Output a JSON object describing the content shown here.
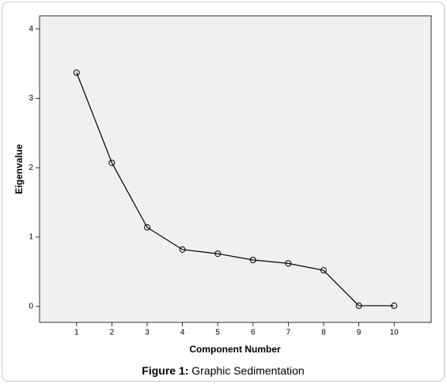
{
  "chart_data": {
    "type": "line",
    "x_label": "Component Number",
    "y_label": "Eigenvalue",
    "x": [
      1,
      2,
      3,
      4,
      5,
      6,
      7,
      8,
      9,
      10
    ],
    "series": [
      {
        "name": "Eigenvalue",
        "color": "#000000",
        "values": [
          3.37,
          2.07,
          1.14,
          0.82,
          0.76,
          0.67,
          0.62,
          0.52,
          0.01,
          0.01
        ]
      }
    ],
    "xlim": [
      -0.05,
      11.05
    ],
    "ylim": [
      -0.23,
      4.19
    ],
    "xticks": [
      1,
      2,
      3,
      4,
      5,
      6,
      7,
      8,
      9,
      10
    ],
    "yticks": [
      0,
      1,
      2,
      3,
      4
    ],
    "grid": false,
    "markers": true
  },
  "caption": {
    "label": "Figure 1:",
    "text": "Graphic Sedimentation"
  }
}
